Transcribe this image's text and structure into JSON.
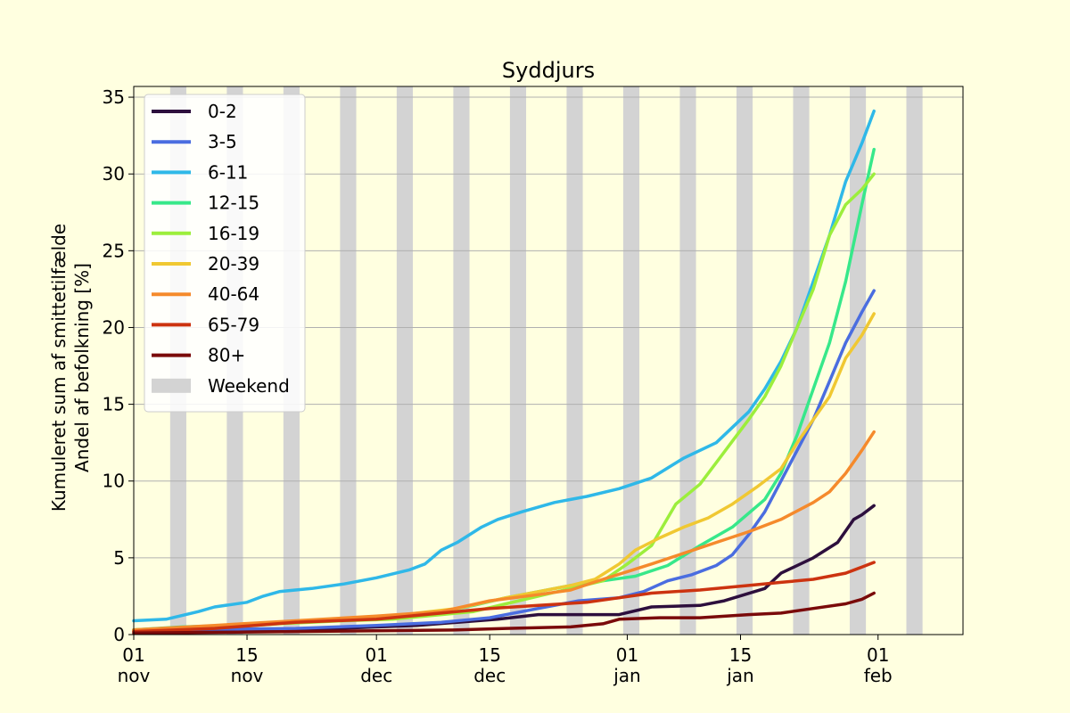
{
  "chart_data": {
    "type": "line",
    "title": "Syddjurs",
    "ylabel_lines": [
      "Kumuleret sum af smittetilfælde",
      "Andel af befolkning [%]"
    ],
    "xlabel": "",
    "ylim": [
      0,
      35.7
    ],
    "yticks": [
      0,
      5,
      10,
      15,
      20,
      25,
      30,
      35
    ],
    "xlim_days": [
      0,
      102.5
    ],
    "x_start_date": "2021-11-01",
    "xticks": [
      {
        "day": 0,
        "line1": "01",
        "line2": "nov"
      },
      {
        "day": 14,
        "line1": "15",
        "line2": "nov"
      },
      {
        "day": 30,
        "line1": "01",
        "line2": "dec"
      },
      {
        "day": 44,
        "line1": "15",
        "line2": "dec"
      },
      {
        "day": 61,
        "line1": "01",
        "line2": "jan"
      },
      {
        "day": 75,
        "line1": "15",
        "line2": "jan"
      },
      {
        "day": 92,
        "line1": "01",
        "line2": "feb"
      }
    ],
    "grid": "horizontal",
    "legend_position": "top-left",
    "weekend_label": "Weekend",
    "weekend_color": "#d3d3d3",
    "weekend_starts_day": [
      5,
      12,
      19,
      26,
      33,
      40,
      47,
      54,
      61,
      68,
      75,
      82,
      89,
      96,
      103
    ],
    "series": [
      {
        "name": "0-2",
        "color": "#2d0f3d",
        "points": [
          [
            0,
            0.2
          ],
          [
            20,
            0.3
          ],
          [
            35,
            0.6
          ],
          [
            45,
            1.0
          ],
          [
            50,
            1.3
          ],
          [
            55,
            1.3
          ],
          [
            60,
            1.3
          ],
          [
            64,
            1.8
          ],
          [
            70,
            1.9
          ],
          [
            73,
            2.2
          ],
          [
            78,
            3.0
          ],
          [
            80,
            4.0
          ],
          [
            84,
            5.0
          ],
          [
            87,
            6.0
          ],
          [
            89,
            7.5
          ],
          [
            90,
            7.8
          ],
          [
            91.5,
            8.4
          ]
        ]
      },
      {
        "name": "3-5",
        "color": "#4a6de0",
        "points": [
          [
            0,
            0.3
          ],
          [
            20,
            0.4
          ],
          [
            30,
            0.6
          ],
          [
            38,
            0.8
          ],
          [
            44,
            1.1
          ],
          [
            50,
            1.7
          ],
          [
            55,
            2.2
          ],
          [
            60,
            2.4
          ],
          [
            63,
            2.8
          ],
          [
            66,
            3.5
          ],
          [
            69,
            3.9
          ],
          [
            72,
            4.5
          ],
          [
            74,
            5.2
          ],
          [
            76,
            6.5
          ],
          [
            78,
            8.0
          ],
          [
            80,
            10.0
          ],
          [
            82,
            12.0
          ],
          [
            84,
            14.0
          ],
          [
            86,
            16.5
          ],
          [
            88,
            19.0
          ],
          [
            90,
            21.0
          ],
          [
            91.5,
            22.4
          ]
        ]
      },
      {
        "name": "6-11",
        "color": "#2fb8e8",
        "points": [
          [
            0,
            0.9
          ],
          [
            4,
            1.0
          ],
          [
            8,
            1.5
          ],
          [
            10,
            1.8
          ],
          [
            14,
            2.1
          ],
          [
            16,
            2.5
          ],
          [
            18,
            2.8
          ],
          [
            22,
            3.0
          ],
          [
            26,
            3.3
          ],
          [
            30,
            3.7
          ],
          [
            34,
            4.2
          ],
          [
            36,
            4.6
          ],
          [
            38,
            5.5
          ],
          [
            40,
            6.0
          ],
          [
            43,
            7.0
          ],
          [
            45,
            7.5
          ],
          [
            48,
            8.0
          ],
          [
            52,
            8.6
          ],
          [
            56,
            9.0
          ],
          [
            60,
            9.5
          ],
          [
            64,
            10.2
          ],
          [
            68,
            11.5
          ],
          [
            72,
            12.5
          ],
          [
            76,
            14.5
          ],
          [
            78,
            16.0
          ],
          [
            80,
            17.8
          ],
          [
            82,
            20.0
          ],
          [
            84,
            23.0
          ],
          [
            86,
            26.0
          ],
          [
            88,
            29.5
          ],
          [
            90,
            32.0
          ],
          [
            91.5,
            34.1
          ]
        ]
      },
      {
        "name": "12-15",
        "color": "#37e88a",
        "points": [
          [
            0,
            0.3
          ],
          [
            6,
            0.5
          ],
          [
            12,
            0.6
          ],
          [
            18,
            0.8
          ],
          [
            26,
            1.0
          ],
          [
            32,
            1.2
          ],
          [
            38,
            1.5
          ],
          [
            42,
            1.9
          ],
          [
            46,
            2.4
          ],
          [
            50,
            2.8
          ],
          [
            54,
            3.2
          ],
          [
            58,
            3.5
          ],
          [
            62,
            3.8
          ],
          [
            66,
            4.5
          ],
          [
            70,
            5.8
          ],
          [
            74,
            7.0
          ],
          [
            78,
            8.8
          ],
          [
            80,
            10.5
          ],
          [
            82,
            13.0
          ],
          [
            84,
            16.0
          ],
          [
            86,
            19.0
          ],
          [
            88,
            23.0
          ],
          [
            90,
            28.0
          ],
          [
            91.5,
            31.6
          ]
        ]
      },
      {
        "name": "16-19",
        "color": "#9cee3c",
        "points": [
          [
            0,
            0.3
          ],
          [
            6,
            0.4
          ],
          [
            12,
            0.5
          ],
          [
            18,
            0.7
          ],
          [
            26,
            0.9
          ],
          [
            32,
            1.0
          ],
          [
            38,
            1.3
          ],
          [
            42,
            1.5
          ],
          [
            46,
            2.0
          ],
          [
            50,
            2.5
          ],
          [
            54,
            3.0
          ],
          [
            58,
            3.5
          ],
          [
            61,
            4.6
          ],
          [
            64,
            5.8
          ],
          [
            67,
            8.5
          ],
          [
            70,
            9.8
          ],
          [
            72,
            11.2
          ],
          [
            74,
            12.6
          ],
          [
            76,
            14.0
          ],
          [
            78,
            15.5
          ],
          [
            80,
            17.5
          ],
          [
            82,
            20.0
          ],
          [
            84,
            22.5
          ],
          [
            86,
            26.0
          ],
          [
            88,
            28.0
          ],
          [
            90,
            29.0
          ],
          [
            91.5,
            30.0
          ]
        ]
      },
      {
        "name": "20-39",
        "color": "#f0c832",
        "points": [
          [
            0,
            0.3
          ],
          [
            10,
            0.5
          ],
          [
            20,
            0.8
          ],
          [
            30,
            1.1
          ],
          [
            40,
            1.7
          ],
          [
            46,
            2.4
          ],
          [
            50,
            2.8
          ],
          [
            54,
            3.2
          ],
          [
            57,
            3.6
          ],
          [
            60,
            4.6
          ],
          [
            62,
            5.5
          ],
          [
            65,
            6.3
          ],
          [
            68,
            7.0
          ],
          [
            71,
            7.6
          ],
          [
            74,
            8.5
          ],
          [
            77,
            9.6
          ],
          [
            80,
            10.8
          ],
          [
            82,
            12.5
          ],
          [
            84,
            14.0
          ],
          [
            86,
            15.5
          ],
          [
            88,
            18.0
          ],
          [
            90,
            19.5
          ],
          [
            91.5,
            20.9
          ]
        ]
      },
      {
        "name": "40-64",
        "color": "#f58a2c",
        "points": [
          [
            0,
            0.3
          ],
          [
            10,
            0.6
          ],
          [
            20,
            0.9
          ],
          [
            30,
            1.2
          ],
          [
            38,
            1.5
          ],
          [
            44,
            2.2
          ],
          [
            50,
            2.6
          ],
          [
            54,
            2.9
          ],
          [
            58,
            3.6
          ],
          [
            61,
            4.1
          ],
          [
            64,
            4.6
          ],
          [
            68,
            5.3
          ],
          [
            72,
            6.0
          ],
          [
            76,
            6.7
          ],
          [
            80,
            7.5
          ],
          [
            84,
            8.6
          ],
          [
            86,
            9.3
          ],
          [
            88,
            10.5
          ],
          [
            90,
            12.0
          ],
          [
            91.5,
            13.2
          ]
        ]
      },
      {
        "name": "65-79",
        "color": "#cc3310",
        "points": [
          [
            0,
            0.2
          ],
          [
            10,
            0.4
          ],
          [
            20,
            0.8
          ],
          [
            30,
            1.0
          ],
          [
            38,
            1.4
          ],
          [
            44,
            1.7
          ],
          [
            50,
            1.9
          ],
          [
            56,
            2.1
          ],
          [
            60,
            2.4
          ],
          [
            64,
            2.7
          ],
          [
            70,
            2.9
          ],
          [
            76,
            3.2
          ],
          [
            80,
            3.4
          ],
          [
            84,
            3.6
          ],
          [
            88,
            4.0
          ],
          [
            90,
            4.4
          ],
          [
            91.5,
            4.7
          ]
        ]
      },
      {
        "name": "80+",
        "color": "#7a0a0a",
        "points": [
          [
            0,
            0.1
          ],
          [
            20,
            0.2
          ],
          [
            40,
            0.3
          ],
          [
            46,
            0.4
          ],
          [
            54,
            0.5
          ],
          [
            58,
            0.7
          ],
          [
            60,
            1.0
          ],
          [
            65,
            1.1
          ],
          [
            70,
            1.1
          ],
          [
            76,
            1.3
          ],
          [
            80,
            1.4
          ],
          [
            84,
            1.7
          ],
          [
            88,
            2.0
          ],
          [
            90,
            2.3
          ],
          [
            91.5,
            2.7
          ]
        ]
      }
    ]
  }
}
